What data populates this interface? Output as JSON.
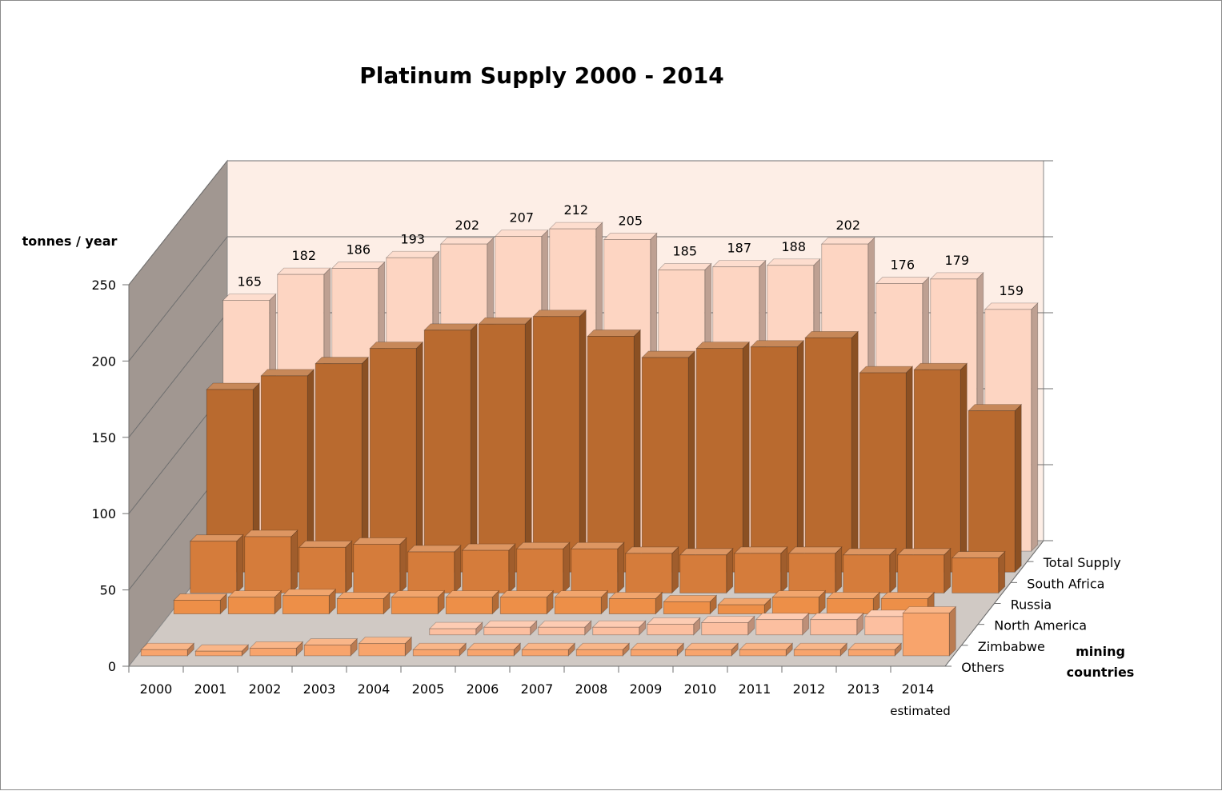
{
  "chart_data": {
    "type": "bar",
    "subtype": "3d-clustered-column",
    "title": "Platinum Supply 2000 - 2014",
    "ylabel": "tonnes / year",
    "depth_axis_label": "mining countries",
    "ylim": [
      0,
      250
    ],
    "yticks": [
      "0",
      "50",
      "100",
      "150",
      "200",
      "250"
    ],
    "categories": [
      "2000",
      "2001",
      "2002",
      "2003",
      "2004",
      "2005",
      "2006",
      "2007",
      "2008",
      "2009",
      "2010",
      "2011",
      "2012",
      "2013",
      "2014"
    ],
    "category_note": "estimated",
    "series": [
      {
        "name": "Total Supply",
        "color": "#FDD5C2",
        "values": [
          165,
          182,
          186,
          193,
          202,
          207,
          212,
          205,
          185,
          187,
          188,
          202,
          176,
          179,
          159
        ],
        "value_labels": [
          "165",
          "182",
          "186",
          "193",
          "202",
          "207",
          "212",
          "205",
          "185",
          "187",
          "188",
          "202",
          "176",
          "179",
          "159"
        ]
      },
      {
        "name": "South Africa",
        "color": "#B96A2F",
        "values": [
          120,
          129,
          137,
          147,
          159,
          163,
          168,
          155,
          141,
          147,
          148,
          154,
          131,
          133,
          106
        ]
      },
      {
        "name": "Russia",
        "color": "#D57C3B",
        "values": [
          34,
          37,
          30,
          32,
          27,
          28,
          29,
          29,
          26,
          25,
          26,
          26,
          25,
          25,
          23
        ]
      },
      {
        "name": "North America",
        "color": "#ED8F48",
        "values": [
          9,
          11,
          12,
          10,
          11,
          11,
          11,
          11,
          10,
          8,
          6,
          11,
          10,
          10,
          null
        ]
      },
      {
        "name": "Zimbabwe",
        "color": "#FCBFA0",
        "values": [
          null,
          null,
          null,
          null,
          null,
          4,
          5,
          5,
          5,
          7,
          8,
          10,
          10,
          12,
          null
        ]
      },
      {
        "name": "Others",
        "color": "#F8A46C",
        "values": [
          4,
          3,
          5,
          7,
          8,
          4,
          4,
          4,
          4,
          4,
          4,
          4,
          4,
          4,
          28
        ]
      }
    ]
  }
}
